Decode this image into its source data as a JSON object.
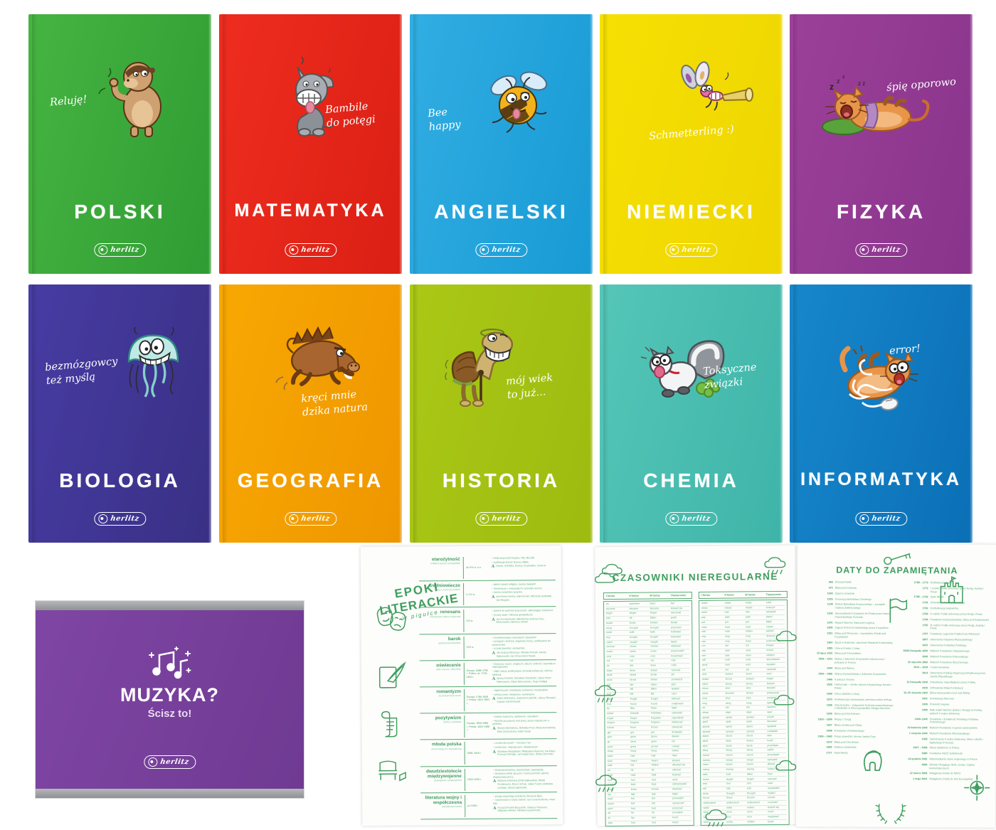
{
  "brand": {
    "logo_text": "herlitz"
  },
  "covers": [
    {
      "subject": "POLSKI",
      "speech": "Reluję!",
      "art": "capybara",
      "bg1": "#46b441",
      "bg2": "#2f9c33"
    },
    {
      "subject": "MATEMATYKA",
      "speech": "Bambile\ndo potęgi",
      "art": "donkey",
      "bg1": "#ee2d1f",
      "bg2": "#db1f14"
    },
    {
      "subject": "ANGIELSKI",
      "speech": "Bee happy",
      "art": "bee",
      "bg1": "#31aee3",
      "bg2": "#189ad4"
    },
    {
      "subject": "NIEMIECKI",
      "speech": "Schmetterling :)",
      "art": "dragonfly",
      "bg1": "#f6e003",
      "bg2": "#eed501"
    },
    {
      "subject": "FIZYKA",
      "speech": "śpię oporowo",
      "art": "sleeping-cat",
      "bg1": "#9c4099",
      "bg2": "#89348c"
    },
    {
      "subject": "BIOLOGIA",
      "speech": "bezmózgowcy\nteż myślą",
      "art": "jellyfish",
      "bg1": "#473ca3",
      "bg2": "#393085"
    },
    {
      "subject": "GEOGRAFIA",
      "speech": "kręci mnie\ndzika natura",
      "art": "boar",
      "bg1": "#f8a802",
      "bg2": "#ee9600"
    },
    {
      "subject": "HISTORIA",
      "speech": "mój wiek\nto już...",
      "art": "turtle",
      "bg1": "#abc816",
      "bg2": "#9dbb10"
    },
    {
      "subject": "CHEMIA",
      "speech": "Toksyczne\nzwiązki",
      "art": "skunk",
      "bg1": "#55c6b8",
      "bg2": "#3eb4a8"
    },
    {
      "subject": "INFORMATYKA",
      "speech": "error!",
      "art": "tangled-cat",
      "bg1": "#1787cb",
      "bg2": "#0b6fb6"
    }
  ],
  "muzyka": {
    "title": "MUZYKA?",
    "subtitle": "Ścisz to!",
    "icon": "music-notes-icon"
  },
  "epoki": {
    "title_line1": "EPOKI",
    "title_line2": "LITERACKIE",
    "title_sub": "w pigułce",
    "side_icons": [
      "theater-masks-icon",
      "quill-page-icon",
      "scroll-icon",
      "bench-icon"
    ],
    "rows": [
      {
        "name": "starożytność",
        "sub": "kolebka kultury europejskiej",
        "dates": "do IV/V w. n.e.",
        "bullets": [
          "świat antycznych bogów, mity, filozofia",
          "cywilizacje Grecji i Rzymu, Biblia"
        ],
        "authors": "Homer, Sofokles, Horacy, Arystoteles, Cyceron"
      },
      {
        "name": "średniowiecze",
        "sub": "wiara w życie po śmierci",
        "dates": "V–XV w.",
        "bullets": [
          "pieśni i pieśni religijne, żywoty świętych",
          "teocentryzm i uniwersalizm, rycerskie wzorce",
          "sztuka romańska i gotycka"
        ],
        "authors": "anonimowi twórcy, Gall Anonim, Wincenty Kadłubek, Jan Długosz"
      },
      {
        "name": "renesans",
        "sub": "odrodzenie kultury antycznej",
        "dates": "XVI w.",
        "bullets": [
          "powrót do wartości antycznych, odkrywający humanizm",
          "rozwój nauki i odkrycia geograficzne"
        ],
        "authors": "Jan Kochanowski, Mikołaj Rej, Andrzej Frycz Modrzewski, Klemens Janicki"
      },
      {
        "name": "barok",
        "sub": "epoka przeciwieństw",
        "dates": "XVII w.",
        "bullets": [
          "kontrreformacja i sarmatyzm szlachecki",
          "przepych i kontrast, bogactwo formy, zamiłowanie do wytworności",
          "sztuka dworska i ziemiańska"
        ],
        "authors": "Jan Andrzej Morsztyn, Wacław Potocki, Daniel Naborowski, Jan Chryzostom Pasek"
      },
      {
        "name": "oświecenie",
        "sub": "wiek rozumu i filozofów",
        "dates": "Europa: 1688–1789 r. Polska: ok. 1740–1822 r.",
        "bullets": [
          "krytyczny rozum, empiryzm, deizm i wolność, racjonalizm obyczajowości",
          "bajki, satyry, publicystyka, komedie polityczne, reformy edukacji"
        ],
        "authors": "Ignacy Krasicki, Stanisław Trembecki, Julian Ursyn Niemcewicz, Adam Naruszewicz, Hugo Kołłątaj"
      },
      {
        "name": "romantyzm",
        "sub": "uczucia ponad rozum",
        "dates": "Europa: 1789–1848 r. Polska: 1822–1863 r.",
        "bullets": [
          "tajemniczość, metafizyka, ludowość i irracjonalizm",
          "wieszczowie, mesjanizm, wyobraźnia"
        ],
        "authors": "Adam Mickiewicz, Zygmunt Krasiński, Juliusz Słowacki, Cyprian Kamil Norwid"
      },
      {
        "name": "pozytywizm",
        "sub": "praca u podstaw",
        "dates": "Europa: 1850–1880 r. Polska: 1863–1890 r.",
        "bullets": [
          "realizm krytyczny, utylitaryzm, naturalizm",
          "filozofia pozytywna, kult pracy, praca organiczna i u podstaw"
        ],
        "authors": "Henryk Sienkiewicz, Bolesław Prus, Maria Konopnicka, Eliza Orzeszkowa, Adam Asnyk"
      },
      {
        "name": "młoda polska",
        "sub": "neoromantyzm i dekadencja",
        "dates": "1890–1918 r.",
        "bullets": [
          "„sztuka dla sztuki” – l'art pour l'art",
          "modernizm, impresjonizm, dekadentyzm"
        ],
        "authors": "Stanisław Wyspiański, Władysław Reymont, Kazimierz Przerwa-Tetmajer, Jan Kasprowicz, Stefan Żeromski"
      },
      {
        "name": "dwudziestolecie międzywojenne",
        "sub": "awangarda i eksperyment",
        "dates": "1918–1939 r.",
        "bullets": [
          "eksperymentatorzy, skamandryci, awangarda",
          "tematyka wolnej ojczyzny i nowoczesności, głośny eksperyment prozy"
        ],
        "authors": "Stefania Zahorska (Zofia Nałkowska), Witold Gombrowicz, Bruno Schulz, Julian Tuwim, Bolesław Leśmian, Maria Dąbrowska"
      },
      {
        "name": "literatura wojny i współczesna",
        "sub": "świadkowie historii",
        "dates": "po 1939 r.",
        "bullets": [
          "poezja wojennego pokolenia, literatura faktu",
          "codzienność w cieniu historii, nurt rozrachunkowy, nowa fala"
        ],
        "authors": "Krzysztof Kamil Baczyński, Tadeusz Różewicz, Zbigniew Herbert, Wisława Szymborska"
      }
    ]
  },
  "verbs": {
    "title": "CZASOWNIKI NIEREGULARNE",
    "doodles": [
      "cloud-icon",
      "rain-cloud-icon"
    ],
    "headers": [
      "I forma",
      "II forma",
      "III forma",
      "Tłumaczenie"
    ],
    "left": [
      [
        "be",
        "was/were",
        "been",
        "być"
      ],
      [
        "become",
        "became",
        "become",
        "stawać się"
      ],
      [
        "begin",
        "began",
        "begun",
        "zaczynać"
      ],
      [
        "bite",
        "bit",
        "bitten",
        "gryźć"
      ],
      [
        "break",
        "broke",
        "broken",
        "łamać"
      ],
      [
        "bring",
        "brought",
        "brought",
        "przynosić"
      ],
      [
        "build",
        "built",
        "built",
        "budować"
      ],
      [
        "buy",
        "bought",
        "bought",
        "kupować"
      ],
      [
        "catch",
        "caught",
        "caught",
        "łapać"
      ],
      [
        "choose",
        "chose",
        "chosen",
        "wybierać"
      ],
      [
        "come",
        "came",
        "come",
        "przychodzić"
      ],
      [
        "cost",
        "cost",
        "cost",
        "kosztować"
      ],
      [
        "cut",
        "cut",
        "cut",
        "ciąć"
      ],
      [
        "do",
        "did",
        "done",
        "robić"
      ],
      [
        "draw",
        "drew",
        "drawn",
        "rysować"
      ],
      [
        "drink",
        "drank",
        "drunk",
        "pić"
      ],
      [
        "drive",
        "drove",
        "driven",
        "prowadzić"
      ],
      [
        "eat",
        "ate",
        "eaten",
        "jeść"
      ],
      [
        "fall",
        "fell",
        "fallen",
        "spadać"
      ],
      [
        "feel",
        "felt",
        "felt",
        "czuć"
      ],
      [
        "fight",
        "fought",
        "fought",
        "walczyć"
      ],
      [
        "find",
        "found",
        "found",
        "znajdować"
      ],
      [
        "fly",
        "flew",
        "flown",
        "latać"
      ],
      [
        "forbid",
        "forbade",
        "forbidden",
        "zabraniać"
      ],
      [
        "forget",
        "forgot",
        "forgotten",
        "zapominać"
      ],
      [
        "forgive",
        "forgave",
        "forgiven",
        "wybaczać"
      ],
      [
        "freeze",
        "froze",
        "frozen",
        "zamarzać"
      ],
      [
        "get",
        "got",
        "got",
        "dostawać"
      ],
      [
        "give",
        "gave",
        "given",
        "dawać"
      ],
      [
        "go",
        "went",
        "gone",
        "iść"
      ],
      [
        "grow",
        "grew",
        "grown",
        "rosnąć"
      ],
      [
        "hang",
        "hung",
        "hung",
        "wisieć"
      ],
      [
        "have",
        "had",
        "had",
        "mieć"
      ],
      [
        "hear",
        "heard",
        "heard",
        "słyszeć"
      ],
      [
        "hide",
        "hid",
        "hidden",
        "ukrywać się"
      ],
      [
        "hit",
        "hit",
        "hit",
        "uderzać"
      ],
      [
        "hold",
        "held",
        "held",
        "trzymać"
      ],
      [
        "hurt",
        "hurt",
        "hurt",
        "ranić"
      ],
      [
        "keep",
        "kept",
        "kept",
        "zatrzymywać"
      ],
      [
        "know",
        "knew",
        "known",
        "wiedzieć"
      ],
      [
        "lay",
        "laid",
        "laid",
        "kłaść"
      ],
      [
        "lead",
        "led",
        "led",
        "prowadzić"
      ],
      [
        "leave",
        "left",
        "left",
        "opuszczać"
      ],
      [
        "lend",
        "lent",
        "lent",
        "pożyczać"
      ],
      [
        "let",
        "let",
        "let",
        "pozwalać"
      ],
      [
        "lie",
        "lay",
        "lain",
        "leżeć"
      ],
      [
        "lose",
        "lost",
        "lost",
        "tracić"
      ]
    ],
    "right": [
      [
        "make",
        "made",
        "made",
        "robić"
      ],
      [
        "mean",
        "meant",
        "meant",
        "znaczyć"
      ],
      [
        "meet",
        "met",
        "met",
        "spotykać"
      ],
      [
        "pay",
        "paid",
        "paid",
        "płacić"
      ],
      [
        "put",
        "put",
        "put",
        "kłaść"
      ],
      [
        "read",
        "read",
        "read",
        "czytać"
      ],
      [
        "ride",
        "rode",
        "ridden",
        "jeździć"
      ],
      [
        "ring",
        "rang",
        "rung",
        "dzwonić"
      ],
      [
        "rise",
        "rose",
        "risen",
        "podnosić się"
      ],
      [
        "run",
        "ran",
        "run",
        "biegać"
      ],
      [
        "say",
        "said",
        "said",
        "mówić"
      ],
      [
        "see",
        "saw",
        "seen",
        "widzieć"
      ],
      [
        "sell",
        "sold",
        "sold",
        "sprzedawać"
      ],
      [
        "send",
        "sent",
        "sent",
        "wysyłać"
      ],
      [
        "set",
        "set",
        "set",
        "ustawiać"
      ],
      [
        "sew",
        "sewed",
        "sewn",
        "szyć"
      ],
      [
        "shake",
        "shook",
        "shaken",
        "trząść"
      ],
      [
        "shine",
        "shone",
        "shone",
        "świecić"
      ],
      [
        "shoot",
        "shot",
        "shot",
        "strzelać"
      ],
      [
        "show",
        "showed",
        "shown",
        "pokazywać"
      ],
      [
        "shut",
        "shut",
        "shut",
        "zamykać"
      ],
      [
        "sing",
        "sang",
        "sung",
        "śpiewać"
      ],
      [
        "sit",
        "sat",
        "sat",
        "siedzieć"
      ],
      [
        "sleep",
        "slept",
        "slept",
        "spać"
      ],
      [
        "speak",
        "spoke",
        "spoken",
        "mówić"
      ],
      [
        "spell",
        "spelt",
        "spelt",
        "literować"
      ],
      [
        "spend",
        "spent",
        "spent",
        "spędzać"
      ],
      [
        "spread",
        "spread",
        "spread",
        "rozkładać"
      ],
      [
        "stand",
        "stood",
        "stood",
        "stać"
      ],
      [
        "steal",
        "stole",
        "stolen",
        "kraść"
      ],
      [
        "stick",
        "stuck",
        "stuck",
        "przyklejać"
      ],
      [
        "sting",
        "stung",
        "stung",
        "żądlić"
      ],
      [
        "swear",
        "swore",
        "sworn",
        "przysięgać"
      ],
      [
        "sweep",
        "swept",
        "swept",
        "zamiatać"
      ],
      [
        "swim",
        "swam",
        "swum",
        "pływać"
      ],
      [
        "swing",
        "swung",
        "swung",
        "huśtać się"
      ],
      [
        "take",
        "took",
        "taken",
        "brać"
      ],
      [
        "teach",
        "taught",
        "taught",
        "nauczać"
      ],
      [
        "tear",
        "tore",
        "torn",
        "rwać"
      ],
      [
        "tell",
        "told",
        "told",
        "opowiadać"
      ],
      [
        "think",
        "thought",
        "thought",
        "myśleć"
      ],
      [
        "throw",
        "threw",
        "thrown",
        "rzucać"
      ],
      [
        "understand",
        "understood",
        "understood",
        "rozumieć"
      ],
      [
        "wake",
        "woke",
        "woken",
        "budzić się"
      ],
      [
        "wear",
        "wore",
        "worn",
        "nosić"
      ],
      [
        "win",
        "won",
        "won",
        "wygrywać"
      ],
      [
        "write",
        "wrote",
        "written",
        "pisać"
      ]
    ]
  },
  "daty": {
    "title": "DATY DO ZAPAMIĘTANIA",
    "icons": [
      "key-icon",
      "castle-icon",
      "flag-icon",
      "helmet-icon",
      "compass-icon",
      "laurel-icon"
    ],
    "left": [
      {
        "d": "966",
        "t": "Chrzest Polski"
      },
      {
        "d": "972",
        "t": "Bitwa pod Cedynią"
      },
      {
        "d": "1000",
        "t": "Zjazd w Gnieźnie"
      },
      {
        "d": "1025",
        "t": "Koronacja Bolesława Chrobrego"
      },
      {
        "d": "1138",
        "t": "Śmierć Bolesława Krzywoustego – początek rozbicia dzielnicowego"
      },
      {
        "d": "1226",
        "t": "Sprowadzenie Krzyżaków do Polski przez księcia mazowieckiego Konrada"
      },
      {
        "d": "1241",
        "t": "Najazd Tatarów, bitwa pod Legnicą"
      },
      {
        "d": "1308",
        "t": "Zajęcie Pomorza Gdańskiego przez Krzyżaków"
      },
      {
        "d": "1331",
        "t": "Bitwa pod Płowcami – zwycięstwo Polski nad Krzyżakami"
      },
      {
        "d": "1364",
        "t": "Zjazd w Krakowie, założenie Akademii Krakowskiej"
      },
      {
        "d": "1385",
        "t": "Unia w Krewie z Litwą"
      },
      {
        "d": "15 lipca 1410",
        "t": "Bitwa pod Grunwaldem"
      },
      {
        "d": "1409 – 1411",
        "t": "Wojna z Zakonem Krzyżackim zakończona I pokojem w Toruniu"
      },
      {
        "d": "1444",
        "t": "Bitwa pod Warną"
      },
      {
        "d": "1454 – 1466",
        "t": "Wojna trzynastoletnia z Zakonem Krzyżackim"
      },
      {
        "d": "1466",
        "t": "II pokój w Toruniu"
      },
      {
        "d": "1525",
        "t": "Hołd pruski – ziemie zakonu krzyżackiego lennem Polski"
      },
      {
        "d": "1569",
        "t": "Unia Lubelska z Litwą"
      },
      {
        "d": "1573",
        "t": "Konfederacja warszawska, pierwsza wolna elekcja"
      },
      {
        "d": "1596",
        "t": "Unia brzeska – połączenie Kościoła prawosławnego z katolickim w Rzeczypospolitej Obojga Narodów"
      },
      {
        "d": "1605",
        "t": "Bitwa pod Kircholmem"
      },
      {
        "d": "1620 – 1699",
        "t": "Wojny z Turcją"
      },
      {
        "d": "1627",
        "t": "Bitwa morska pod Oliwą"
      },
      {
        "d": "1648",
        "t": "Powstanie Chmielnickiego"
      },
      {
        "d": "1655 – 1660",
        "t": "Potop szwedzki, obrona Jasnej Góry"
      },
      {
        "d": "1673",
        "t": "Bitwa pod Chocimiem"
      },
      {
        "d": "1683",
        "t": "Odsiecz wiedeńska"
      },
      {
        "d": "1717",
        "t": "Sejm Niemy"
      }
    ],
    "right": [
      {
        "d": "1768 – 1772",
        "t": "Konfederacja barska"
      },
      {
        "d": "1772",
        "t": "I rozbiór Polski dokonany przez Rosję, Austrię i Prusy"
      },
      {
        "d": "1788 – 1792",
        "t": "Sejm Wielki"
      },
      {
        "d": "1791",
        "t": "Uchwalenie Konstytucji 3 Maja"
      },
      {
        "d": "1792",
        "t": "Konfederacja targowicka"
      },
      {
        "d": "1793",
        "t": "II rozbiór Polski dokonany przez Rosję i Prusy"
      },
      {
        "d": "1794",
        "t": "Powstanie kościuszkowskie, bitwa pod Racławicami"
      },
      {
        "d": "1795",
        "t": "III rozbiór Polski dokonany przez Rosję, Austrię i Prusy"
      },
      {
        "d": "1797",
        "t": "Powstanie Legionów Polskich we Włoszech"
      },
      {
        "d": "1807",
        "t": "Utworzenie Księstwa Warszawskiego"
      },
      {
        "d": "1815",
        "t": "Utworzenie Królestwa Polskiego"
      },
      {
        "d": "29/30 listopada 1830",
        "t": "Wybuch Powstania Listopadowego"
      },
      {
        "d": "1846",
        "t": "Wybuch Powstania Krakowskiego"
      },
      {
        "d": "22 stycznia 1863",
        "t": "Wybuch Powstania Styczniowego"
      },
      {
        "d": "1914 – 1918",
        "t": "I wojna światowa"
      },
      {
        "d": "1914",
        "t": "Utworzenie Polskiej Organizacji Wojskowej przez Józefa Piłsudskiego"
      },
      {
        "d": "11 listopada 1918",
        "t": "Odzyskanie niepodległości przez Polskę"
      },
      {
        "d": "1919",
        "t": "Uchwalenie Małej Konstytucji"
      },
      {
        "d": "13–25 sierpnia 1920",
        "t": "Bitwa warszawska (Cud nad Wisłą)"
      },
      {
        "d": "1921",
        "t": "Konstytucja Marcowa"
      },
      {
        "d": "1926",
        "t": "Przewrót majowy"
      },
      {
        "d": "1939",
        "t": "Atak wojsk Niemiec (paktu z Rosją) na Polskę, wybuch II wojny światowej"
      },
      {
        "d": "1940–1945",
        "t": "Powstanie i działalność Polskiego Państwa Podziemnego"
      },
      {
        "d": "19 kwietnia 1943",
        "t": "Wybuch Powstania w getcie warszawskim"
      },
      {
        "d": "1 sierpnia 1944",
        "t": "Wybuch Powstania Warszawskiego"
      },
      {
        "d": "1945",
        "t": "Zakończenie II wojny światowej, bitwa o Berlin i kapitulacja III Rzeszy"
      },
      {
        "d": "1947 – 1956",
        "t": "Okres stalinizmu w Polsce"
      },
      {
        "d": "1980",
        "t": "Powstanie NSZZ Solidarność"
      },
      {
        "d": "13 grudnia 1981",
        "t": "Wprowadzenie stanu wojennego w Polsce"
      },
      {
        "d": "1989",
        "t": "Obrady Okrągłego Stołu, koniec rządów komunistycznych"
      },
      {
        "d": "12 marca 1999",
        "t": "Wstąpienie Polski do NATO"
      },
      {
        "d": "1 maja 2004",
        "t": "Wstąpienie Polski do Unii Europejskiej"
      }
    ]
  }
}
